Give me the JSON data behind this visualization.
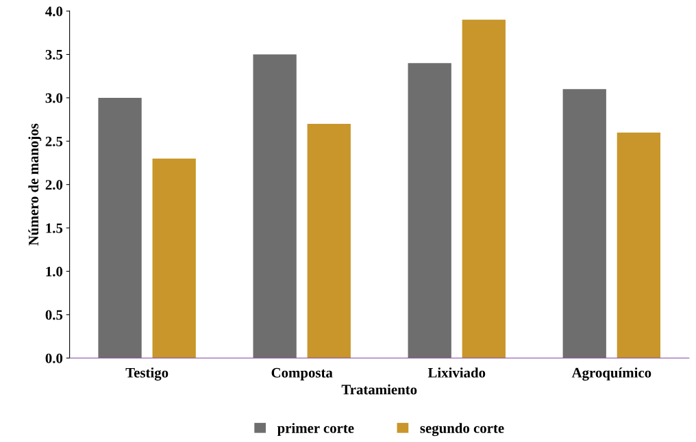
{
  "chart_data": {
    "type": "bar",
    "xlabel": "Tratamiento",
    "ylabel": "Número de manojos",
    "categories": [
      "Testigo",
      "Composta",
      "Lixiviado",
      "Agroquímico"
    ],
    "series": [
      {
        "name": "primer corte",
        "color": "#6e6e6e",
        "values": [
          3.0,
          3.5,
          3.4,
          3.1
        ]
      },
      {
        "name": "segundo corte",
        "color": "#c8962a",
        "values": [
          2.3,
          2.7,
          3.9,
          2.6
        ]
      }
    ],
    "ylim": [
      0,
      4
    ],
    "yticks": [
      {
        "value": 0,
        "label": "0.0"
      },
      {
        "value": 0.5,
        "label": "0.5"
      },
      {
        "value": 1,
        "label": "1.0"
      },
      {
        "value": 1.5,
        "label": "1.5"
      },
      {
        "value": 2,
        "label": "2.0"
      },
      {
        "value": 2.5,
        "label": "2.5"
      },
      {
        "value": 3,
        "label": "3.0"
      },
      {
        "value": 3.5,
        "label": "3.5"
      },
      {
        "value": 4,
        "label": "4.0"
      }
    ],
    "grid": false,
    "legend": "bottom"
  }
}
